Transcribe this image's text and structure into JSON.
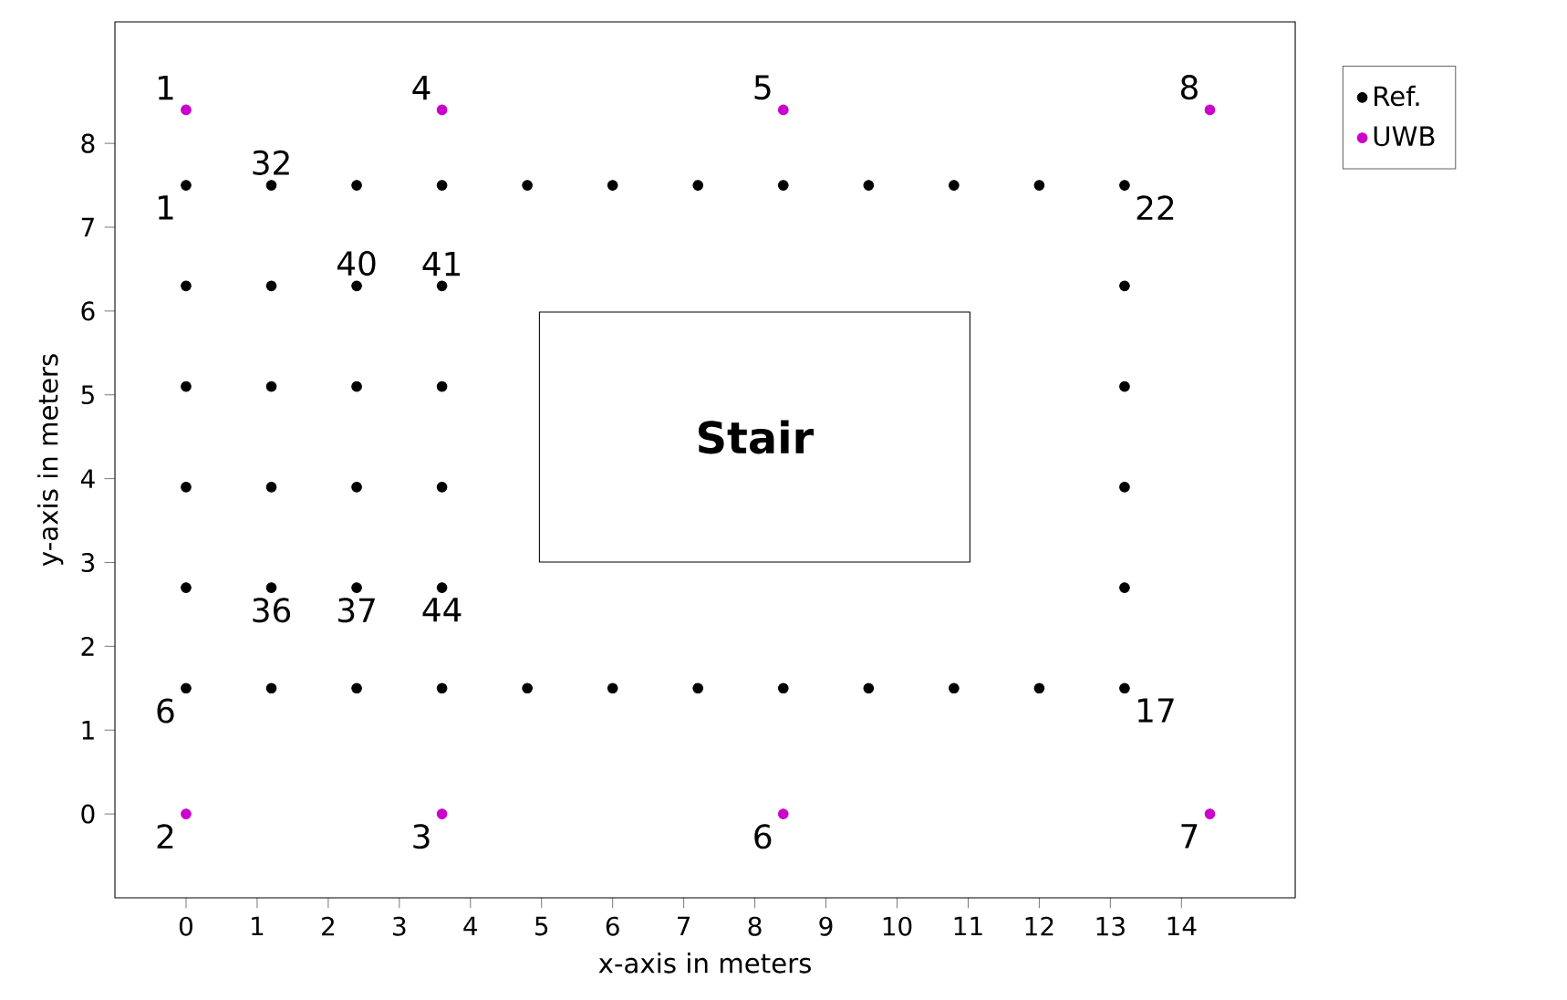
{
  "chart_data": {
    "type": "scatter",
    "xlabel": "x-axis in meters",
    "ylabel": "y-axis in meters",
    "xlim": [
      -1,
      15.6
    ],
    "ylim": [
      -1,
      9.45
    ],
    "xticks": [
      0,
      1,
      2,
      3,
      4,
      5,
      6,
      7,
      8,
      9,
      10,
      11,
      12,
      13,
      14
    ],
    "yticks": [
      0,
      1,
      2,
      3,
      4,
      5,
      6,
      7,
      8
    ],
    "legend": "top right",
    "grid": false,
    "series": [
      {
        "name": "Ref.",
        "color": "#000000",
        "x": [
          0,
          1.2,
          2.4,
          3.6,
          4.8,
          6,
          7.2,
          8.4,
          9.6,
          10.8,
          12,
          13.2,
          0,
          1.2,
          2.4,
          3.6,
          13.2,
          0,
          1.2,
          2.4,
          3.6,
          13.2,
          0,
          1.2,
          2.4,
          3.6,
          13.2,
          0,
          1.2,
          2.4,
          3.6,
          13.2,
          0,
          1.2,
          2.4,
          3.6,
          4.8,
          6,
          7.2,
          8.4,
          9.6,
          10.8,
          12,
          13.2
        ],
        "values": [
          7.5,
          7.5,
          7.5,
          7.5,
          7.5,
          7.5,
          7.5,
          7.5,
          7.5,
          7.5,
          7.5,
          7.5,
          6.3,
          6.3,
          6.3,
          6.3,
          6.3,
          5.1,
          5.1,
          5.1,
          5.1,
          5.1,
          3.9,
          3.9,
          3.9,
          3.9,
          3.9,
          2.7,
          2.7,
          2.7,
          2.7,
          2.7,
          1.5,
          1.5,
          1.5,
          1.5,
          1.5,
          1.5,
          1.5,
          1.5,
          1.5,
          1.5,
          1.5,
          1.5
        ]
      },
      {
        "name": "UWB",
        "color": "#cc00cc",
        "x": [
          0,
          3.6,
          8.4,
          14.4,
          0,
          3.6,
          8.4,
          14.4
        ],
        "values": [
          8.4,
          8.4,
          8.4,
          8.4,
          0,
          0,
          0,
          0
        ]
      }
    ],
    "annotations": [
      {
        "text": "1",
        "x": 0,
        "y": 8.4
      },
      {
        "text": "1",
        "x": 0,
        "y": 7.5
      },
      {
        "text": "32",
        "x": 1.2,
        "y": 7.5
      },
      {
        "text": "4",
        "x": 3.6,
        "y": 8.4
      },
      {
        "text": "5",
        "x": 8.4,
        "y": 8.4
      },
      {
        "text": "8",
        "x": 14.4,
        "y": 8.4
      },
      {
        "text": "22",
        "x": 13.2,
        "y": 7.5
      },
      {
        "text": "40",
        "x": 2.4,
        "y": 6.3
      },
      {
        "text": "41",
        "x": 3.6,
        "y": 6.3
      },
      {
        "text": "36",
        "x": 1.2,
        "y": 2.7
      },
      {
        "text": "37",
        "x": 2.4,
        "y": 2.7
      },
      {
        "text": "44",
        "x": 3.6,
        "y": 2.7
      },
      {
        "text": "6",
        "x": 0,
        "y": 1.5
      },
      {
        "text": "17",
        "x": 13.2,
        "y": 1.5
      },
      {
        "text": "2",
        "x": 0,
        "y": 0
      },
      {
        "text": "3",
        "x": 3.6,
        "y": 0
      },
      {
        "text": "6",
        "x": 8.4,
        "y": 0
      },
      {
        "text": "7",
        "x": 14.4,
        "y": 0
      },
      "Stair"
    ]
  }
}
